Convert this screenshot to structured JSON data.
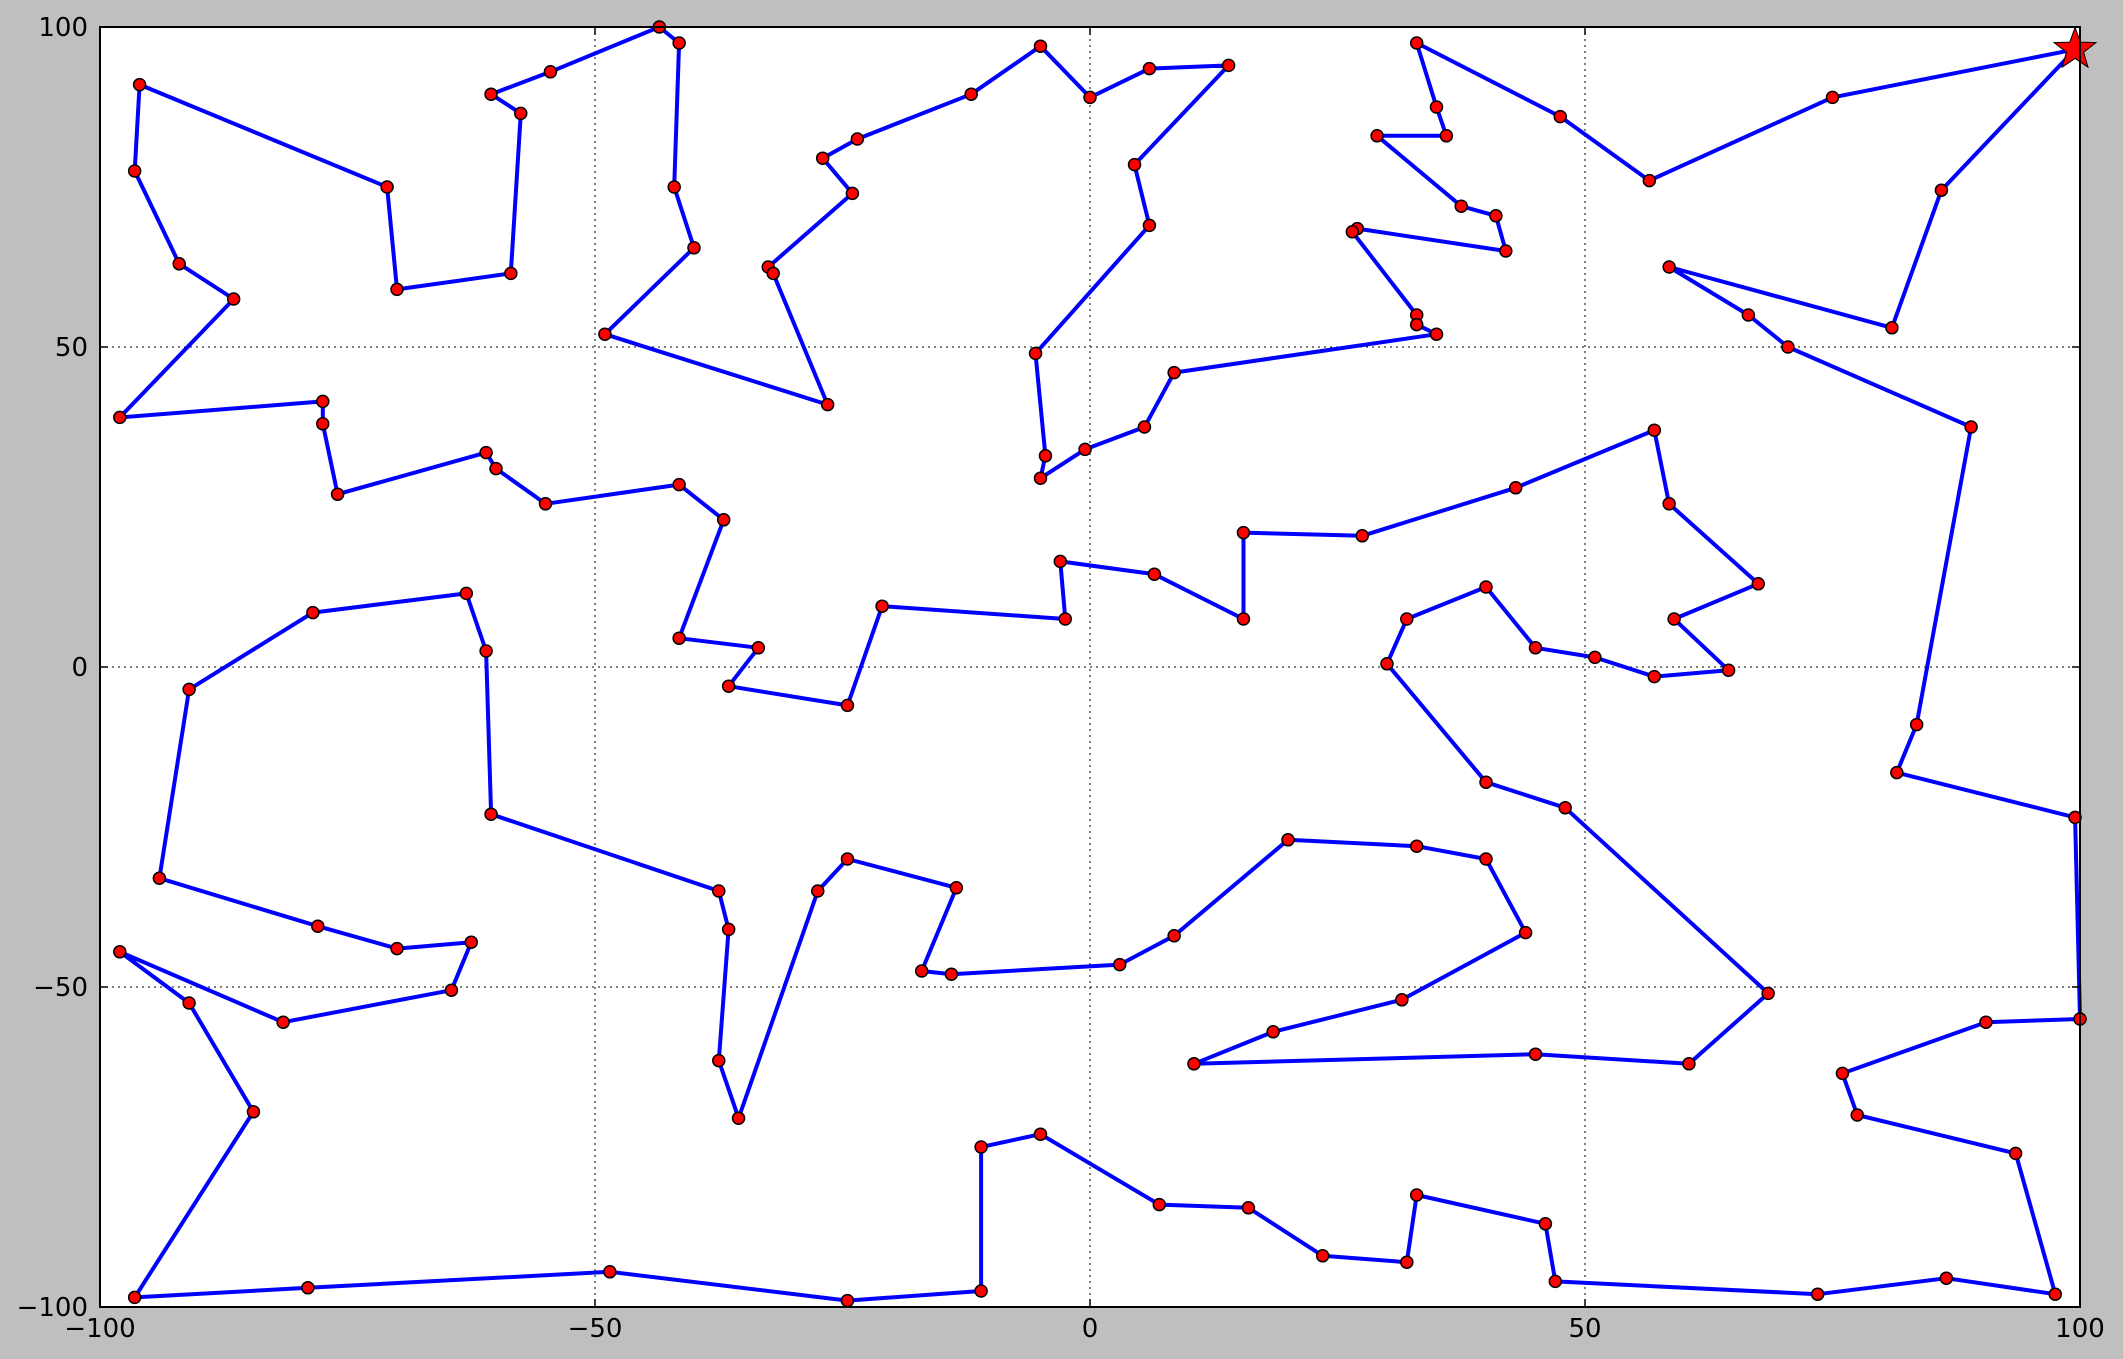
{
  "chart_data": {
    "type": "line",
    "title": "",
    "xlabel": "",
    "ylabel": "",
    "xlim": [
      -100,
      100
    ],
    "ylim": [
      -100,
      100
    ],
    "grid": true,
    "x_ticks": [
      -100,
      -50,
      0,
      50,
      100
    ],
    "y_ticks": [
      -100,
      -50,
      0,
      50,
      100
    ],
    "x_tick_labels": [
      "−100",
      "−50",
      "0",
      "50",
      "100"
    ],
    "y_tick_labels": [
      "−100",
      "−50",
      "0",
      "50",
      "100"
    ],
    "colors": {
      "path": "#0000ff",
      "point_fill": "#ff0000",
      "point_edge": "#000000",
      "start_marker": "#ff0000",
      "background": "#ffffff",
      "figure": "#bfbfbf"
    },
    "start_marker": {
      "x": 99.5,
      "y": 96.5,
      "shape": "star"
    },
    "series": [
      {
        "closed": true,
        "points": [
          [
            99.5,
            96.5
          ],
          [
            75,
            89
          ],
          [
            56.5,
            76
          ],
          [
            47.5,
            86
          ],
          [
            33,
            97.5
          ],
          [
            35,
            87.5
          ],
          [
            36,
            83
          ],
          [
            29,
            83
          ],
          [
            37.5,
            72
          ],
          [
            41,
            70.5
          ],
          [
            42,
            65
          ],
          [
            27,
            68.5
          ],
          [
            26.5,
            68
          ],
          [
            33,
            55
          ],
          [
            33,
            53.5
          ],
          [
            35,
            52
          ],
          [
            8.5,
            46
          ],
          [
            5.5,
            37.5
          ],
          [
            -0.5,
            34
          ],
          [
            -5,
            29.5
          ],
          [
            -4.5,
            33
          ],
          [
            -5.5,
            49
          ],
          [
            6,
            69
          ],
          [
            4.5,
            78.5
          ],
          [
            14,
            94
          ],
          [
            6,
            93.5
          ],
          [
            0,
            89
          ],
          [
            -5,
            97
          ],
          [
            -12,
            89.5
          ],
          [
            -23.5,
            82.5
          ],
          [
            -27,
            79.5
          ],
          [
            -24,
            74
          ],
          [
            -32.5,
            62.5
          ],
          [
            -32,
            61.5
          ],
          [
            -26.5,
            41
          ],
          [
            -49,
            52
          ],
          [
            -40,
            65.5
          ],
          [
            -42,
            75
          ],
          [
            -41.5,
            97.5
          ],
          [
            -43.5,
            100
          ],
          [
            -54.5,
            93
          ],
          [
            -60.5,
            89.5
          ],
          [
            -57.5,
            86.5
          ],
          [
            -58.5,
            61.5
          ],
          [
            -70,
            59
          ],
          [
            -71,
            75
          ],
          [
            -96,
            91
          ],
          [
            -96.5,
            77.5
          ],
          [
            -92,
            63
          ],
          [
            -86.5,
            57.5
          ],
          [
            -98,
            39
          ],
          [
            -77.5,
            41.5
          ],
          [
            -77.5,
            38
          ],
          [
            -76,
            27
          ],
          [
            -61,
            33.5
          ],
          [
            -60,
            31
          ],
          [
            -55,
            25.5
          ],
          [
            -41.5,
            28.5
          ],
          [
            -37,
            23
          ],
          [
            -41.5,
            4.5
          ],
          [
            -33.5,
            3
          ],
          [
            -36.5,
            -3
          ],
          [
            -24.5,
            -6
          ],
          [
            -21,
            9.5
          ],
          [
            -2.5,
            7.5
          ],
          [
            -3,
            16.5
          ],
          [
            6.5,
            14.5
          ],
          [
            15.5,
            7.5
          ],
          [
            15.5,
            21
          ],
          [
            27.5,
            20.5
          ],
          [
            43,
            28
          ],
          [
            57,
            37
          ],
          [
            58.5,
            25.5
          ],
          [
            67.5,
            13
          ],
          [
            59,
            7.5
          ],
          [
            64.5,
            -0.5
          ],
          [
            57,
            -1.5
          ],
          [
            51,
            1.5
          ],
          [
            45,
            3
          ],
          [
            40,
            12.5
          ],
          [
            32,
            7.5
          ],
          [
            30,
            0.5
          ],
          [
            40,
            -18
          ],
          [
            48,
            -22
          ],
          [
            68.5,
            -51
          ],
          [
            60.5,
            -62
          ],
          [
            45,
            -60.5
          ],
          [
            10.5,
            -62
          ],
          [
            18.5,
            -57
          ],
          [
            31.5,
            -52
          ],
          [
            44,
            -41.5
          ],
          [
            40,
            -30
          ],
          [
            33,
            -28
          ],
          [
            20,
            -27
          ],
          [
            8.5,
            -42
          ],
          [
            3,
            -46.5
          ],
          [
            -14,
            -48
          ],
          [
            -17,
            -47.5
          ],
          [
            -13.5,
            -34.5
          ],
          [
            -24.5,
            -30
          ],
          [
            -27.5,
            -35
          ],
          [
            -35.5,
            -70.5
          ],
          [
            -37.5,
            -61.5
          ],
          [
            -36.5,
            -41
          ],
          [
            -37.5,
            -35
          ],
          [
            -60.5,
            -23
          ],
          [
            -61,
            2.5
          ],
          [
            -63,
            11.5
          ],
          [
            -78.5,
            8.5
          ],
          [
            -91,
            -3.5
          ],
          [
            -94,
            -33
          ],
          [
            -78,
            -40.5
          ],
          [
            -70,
            -44
          ],
          [
            -62.5,
            -43
          ],
          [
            -64.5,
            -50.5
          ],
          [
            -81.5,
            -55.5
          ],
          [
            -98,
            -44.5
          ],
          [
            -91,
            -52.5
          ],
          [
            -84.5,
            -69.5
          ],
          [
            -96.5,
            -98.5
          ],
          [
            -79,
            -97
          ],
          [
            -48.5,
            -94.5
          ],
          [
            -24.5,
            -99
          ],
          [
            -11,
            -97.5
          ],
          [
            -11,
            -75
          ],
          [
            -5,
            -73
          ],
          [
            7,
            -84
          ],
          [
            16,
            -84.5
          ],
          [
            23.5,
            -92
          ],
          [
            32,
            -93
          ],
          [
            33,
            -82.5
          ],
          [
            46,
            -87
          ],
          [
            47,
            -96
          ],
          [
            73.5,
            -98
          ],
          [
            86.5,
            -95.5
          ],
          [
            97.5,
            -98
          ],
          [
            93.5,
            -76
          ],
          [
            77.5,
            -70
          ],
          [
            76,
            -63.5
          ],
          [
            90.5,
            -55.5
          ],
          [
            100,
            -55
          ],
          [
            99.5,
            -23.5
          ],
          [
            81.5,
            -16.5
          ],
          [
            83.5,
            -9
          ],
          [
            89,
            37.5
          ],
          [
            70.5,
            50
          ],
          [
            66.5,
            55
          ],
          [
            58.5,
            62.5
          ],
          [
            81,
            53
          ],
          [
            86,
            74.5
          ]
        ]
      }
    ]
  }
}
